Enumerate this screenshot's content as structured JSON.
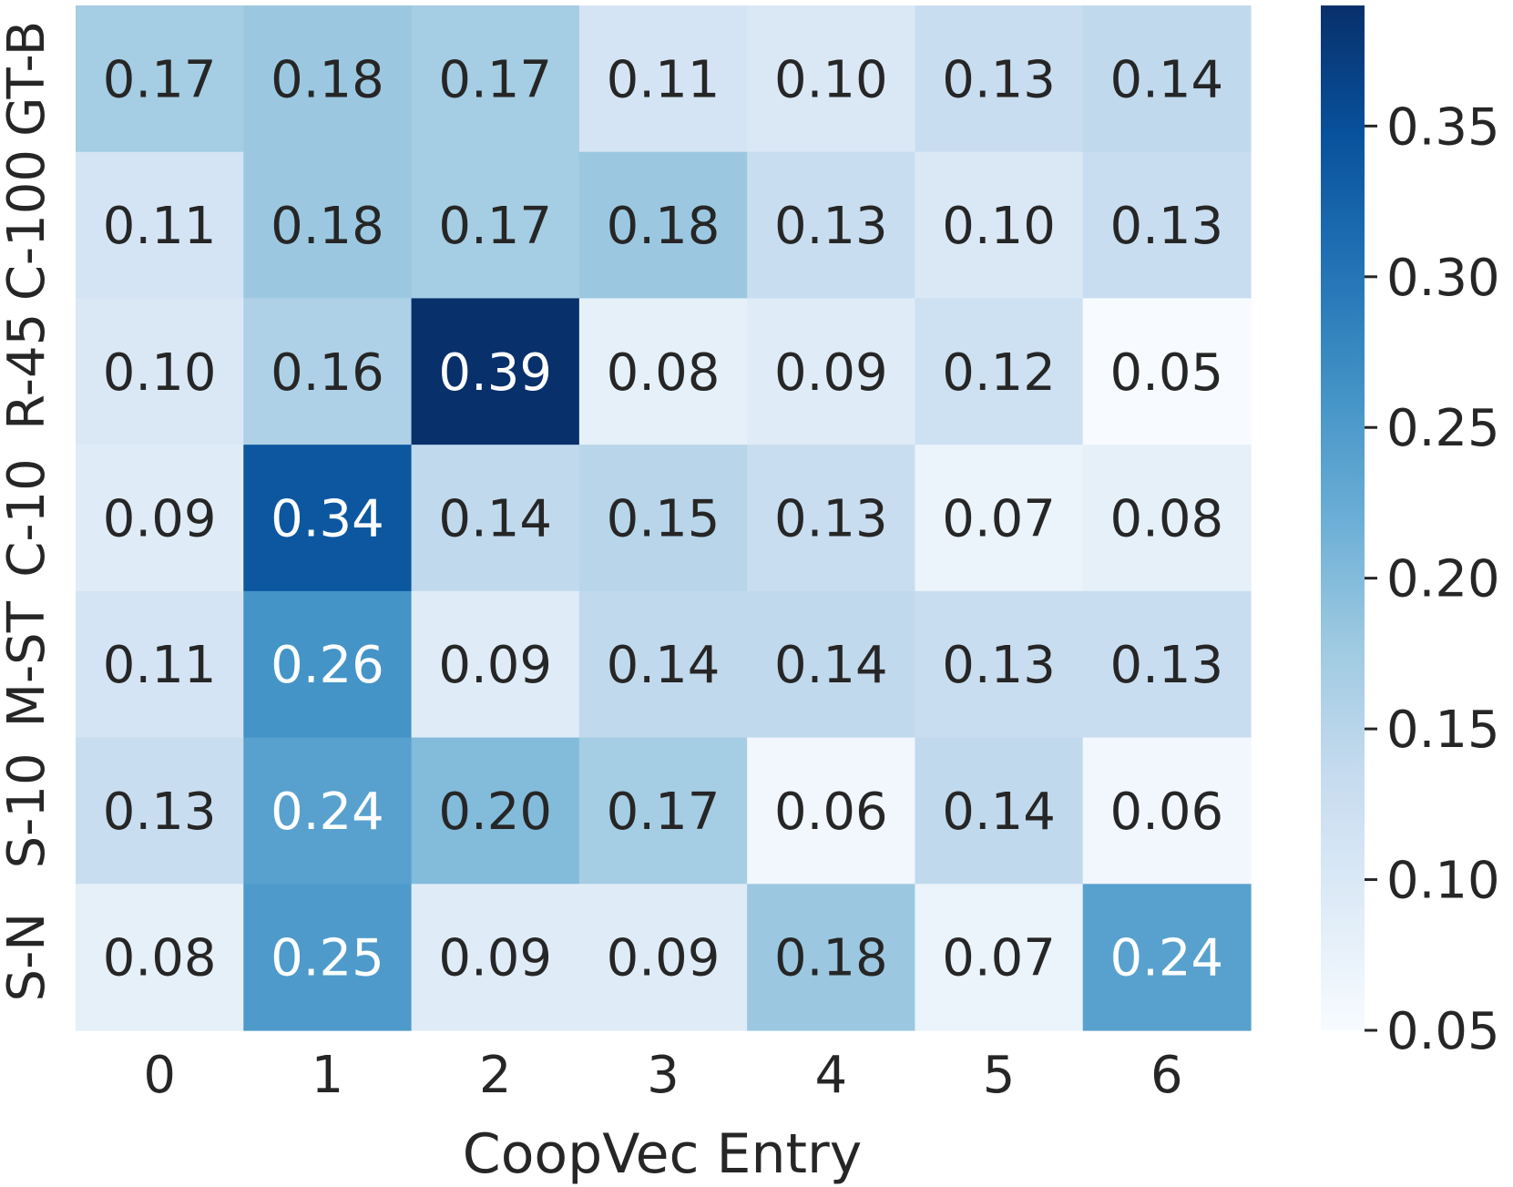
{
  "chart_data": {
    "type": "heatmap",
    "title": "",
    "xlabel": "CoopVec Entry",
    "ylabel": "",
    "x_categories": [
      "0",
      "1",
      "2",
      "3",
      "4",
      "5",
      "6"
    ],
    "y_categories": [
      "GT-B",
      "C-100",
      "R-45",
      "C-10",
      "M-ST",
      "S-10",
      "S-N"
    ],
    "values": [
      [
        0.17,
        0.18,
        0.17,
        0.11,
        0.1,
        0.13,
        0.14
      ],
      [
        0.11,
        0.18,
        0.17,
        0.18,
        0.13,
        0.1,
        0.13
      ],
      [
        0.1,
        0.16,
        0.39,
        0.08,
        0.09,
        0.12,
        0.05
      ],
      [
        0.09,
        0.34,
        0.14,
        0.15,
        0.13,
        0.07,
        0.08
      ],
      [
        0.11,
        0.26,
        0.09,
        0.14,
        0.14,
        0.13,
        0.13
      ],
      [
        0.13,
        0.24,
        0.2,
        0.17,
        0.06,
        0.14,
        0.06
      ],
      [
        0.08,
        0.25,
        0.09,
        0.09,
        0.18,
        0.07,
        0.24
      ]
    ],
    "colormap": "Blues",
    "colorbar": {
      "range": [
        0.05,
        0.39
      ],
      "ticks": [
        0.05,
        0.1,
        0.15,
        0.2,
        0.25,
        0.3,
        0.35
      ],
      "tick_labels": [
        "0.05",
        "0.10",
        "0.15",
        "0.20",
        "0.25",
        "0.30",
        "0.35"
      ]
    },
    "annotation_colors": {
      "dark": "#262626",
      "light": "#ffffff"
    },
    "annotation_switch_value": 0.22
  }
}
